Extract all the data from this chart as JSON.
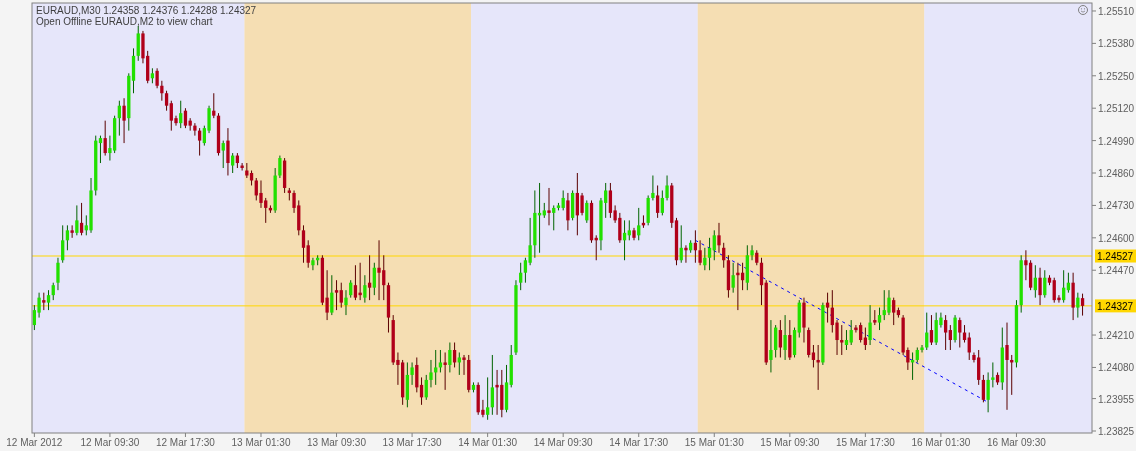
{
  "chart_data": {
    "type": "candlestick",
    "title": "EURAUD,M30  1.24358 1.24376 1.24288 1.24327",
    "annotations": [
      "Open Offline EURAUD,M2 to view chart"
    ],
    "x": [
      "2012-03-12T01:30",
      "2012-03-12T02:00",
      "2012-03-12T02:30",
      "2012-03-12T03:00",
      "2012-03-12T03:30",
      "2012-03-12T04:00",
      "2012-03-12T04:30",
      "2012-03-12T05:00",
      "2012-03-12T05:30",
      "2012-03-12T06:00",
      "2012-03-12T06:30",
      "2012-03-12T07:00",
      "2012-03-12T07:30",
      "2012-03-12T08:00",
      "2012-03-12T08:30",
      "2012-03-12T09:00",
      "2012-03-12T09:30",
      "2012-03-12T10:00",
      "2012-03-12T10:30",
      "2012-03-12T11:00",
      "2012-03-12T11:30",
      "2012-03-12T12:00",
      "2012-03-12T12:30",
      "2012-03-12T13:00",
      "2012-03-12T13:30",
      "2012-03-12T14:00",
      "2012-03-12T14:30",
      "2012-03-12T15:00",
      "2012-03-12T15:30",
      "2012-03-12T16:00",
      "2012-03-12T16:30",
      "2012-03-12T17:00",
      "2012-03-12T17:30",
      "2012-03-12T18:00",
      "2012-03-12T18:30",
      "2012-03-12T19:00",
      "2012-03-12T19:30",
      "2012-03-12T20:00",
      "2012-03-12T20:30",
      "2012-03-12T21:00",
      "2012-03-12T21:30",
      "2012-03-12T22:00",
      "2012-03-12T22:30",
      "2012-03-12T23:00",
      "2012-03-12T23:30",
      "2012-03-13T00:00",
      "2012-03-13T00:30",
      "2012-03-13T01:00",
      "2012-03-13T01:30",
      "2012-03-13T02:00",
      "2012-03-13T02:30",
      "2012-03-13T03:00",
      "2012-03-13T03:30",
      "2012-03-13T04:00",
      "2012-03-13T04:30",
      "2012-03-13T05:00",
      "2012-03-13T05:30",
      "2012-03-13T06:00",
      "2012-03-13T06:30",
      "2012-03-13T07:00",
      "2012-03-13T07:30",
      "2012-03-13T08:00",
      "2012-03-13T08:30",
      "2012-03-13T09:00",
      "2012-03-13T09:30",
      "2012-03-13T10:00",
      "2012-03-13T10:30",
      "2012-03-13T11:00",
      "2012-03-13T11:30",
      "2012-03-13T12:00",
      "2012-03-13T12:30",
      "2012-03-13T13:00",
      "2012-03-13T13:30",
      "2012-03-13T14:00",
      "2012-03-13T14:30",
      "2012-03-13T15:00",
      "2012-03-13T15:30",
      "2012-03-13T16:00",
      "2012-03-13T16:30",
      "2012-03-13T17:00",
      "2012-03-13T17:30",
      "2012-03-13T18:00",
      "2012-03-13T18:30",
      "2012-03-13T19:00",
      "2012-03-13T19:30",
      "2012-03-13T20:00",
      "2012-03-13T20:30",
      "2012-03-13T21:00",
      "2012-03-13T21:30",
      "2012-03-13T22:00",
      "2012-03-13T22:30",
      "2012-03-13T23:00",
      "2012-03-13T23:30",
      "2012-03-14T00:00",
      "2012-03-14T00:30",
      "2012-03-14T01:00",
      "2012-03-14T01:30",
      "2012-03-14T02:00",
      "2012-03-14T02:30",
      "2012-03-14T03:00",
      "2012-03-14T03:30",
      "2012-03-14T04:00",
      "2012-03-14T04:30",
      "2012-03-14T05:00",
      "2012-03-14T05:30",
      "2012-03-14T06:00",
      "2012-03-14T06:30",
      "2012-03-14T07:00",
      "2012-03-14T07:30",
      "2012-03-14T08:00",
      "2012-03-14T08:30",
      "2012-03-14T09:00",
      "2012-03-14T09:30",
      "2012-03-14T10:00",
      "2012-03-14T10:30",
      "2012-03-14T11:00",
      "2012-03-14T11:30",
      "2012-03-14T12:00",
      "2012-03-14T12:30",
      "2012-03-14T13:00",
      "2012-03-14T13:30",
      "2012-03-14T14:00",
      "2012-03-14T14:30",
      "2012-03-14T15:00",
      "2012-03-14T15:30",
      "2012-03-14T16:00",
      "2012-03-14T16:30",
      "2012-03-14T17:00",
      "2012-03-14T17:30",
      "2012-03-14T18:00",
      "2012-03-14T18:30",
      "2012-03-14T19:00",
      "2012-03-14T19:30",
      "2012-03-14T20:00",
      "2012-03-14T20:30",
      "2012-03-14T21:00",
      "2012-03-14T21:30",
      "2012-03-14T22:00",
      "2012-03-14T22:30",
      "2012-03-14T23:00",
      "2012-03-14T23:30",
      "2012-03-15T00:00",
      "2012-03-15T00:30",
      "2012-03-15T01:00",
      "2012-03-15T01:30",
      "2012-03-15T02:00",
      "2012-03-15T02:30",
      "2012-03-15T03:00",
      "2012-03-15T03:30",
      "2012-03-15T04:00",
      "2012-03-15T04:30",
      "2012-03-15T05:00",
      "2012-03-15T05:30",
      "2012-03-15T06:00",
      "2012-03-15T06:30",
      "2012-03-15T07:00",
      "2012-03-15T07:30",
      "2012-03-15T08:00",
      "2012-03-15T08:30",
      "2012-03-15T09:00",
      "2012-03-15T09:30",
      "2012-03-15T10:00",
      "2012-03-15T10:30",
      "2012-03-15T11:00",
      "2012-03-15T11:30",
      "2012-03-15T12:00",
      "2012-03-15T12:30",
      "2012-03-15T13:00",
      "2012-03-15T13:30",
      "2012-03-15T14:00",
      "2012-03-15T14:30",
      "2012-03-15T15:00",
      "2012-03-15T15:30",
      "2012-03-15T16:00",
      "2012-03-15T16:30",
      "2012-03-15T17:00",
      "2012-03-15T17:30",
      "2012-03-15T18:00",
      "2012-03-15T18:30",
      "2012-03-15T19:00",
      "2012-03-15T19:30",
      "2012-03-15T20:00",
      "2012-03-15T20:30",
      "2012-03-15T21:00",
      "2012-03-15T21:30",
      "2012-03-15T22:00",
      "2012-03-15T22:30",
      "2012-03-15T23:00",
      "2012-03-15T23:30",
      "2012-03-16T00:00",
      "2012-03-16T00:30",
      "2012-03-16T01:00",
      "2012-03-16T01:30",
      "2012-03-16T02:00",
      "2012-03-16T02:30",
      "2012-03-16T03:00",
      "2012-03-16T03:30",
      "2012-03-16T04:00",
      "2012-03-16T04:30",
      "2012-03-16T05:00",
      "2012-03-16T05:30",
      "2012-03-16T06:00",
      "2012-03-16T06:30",
      "2012-03-16T07:00",
      "2012-03-16T07:30",
      "2012-03-16T08:00",
      "2012-03-16T08:30",
      "2012-03-16T09:00",
      "2012-03-16T09:30",
      "2012-03-16T10:00",
      "2012-03-16T10:30",
      "2012-03-16T11:00",
      "2012-03-16T11:30",
      "2012-03-16T12:00",
      "2012-03-16T12:30",
      "2012-03-16T13:00",
      "2012-03-16T13:30",
      "2012-03-16T14:00",
      "2012-03-16T14:30",
      "2012-03-16T15:00",
      "2012-03-16T15:30",
      "2012-03-16T16:00",
      "2012-03-16T16:30"
    ],
    "ohlc": [
      [
        1.2425,
        1.2433,
        1.2423,
        1.2431
      ],
      [
        1.243,
        1.2438,
        1.2428,
        1.2436
      ],
      [
        1.2435,
        1.2438,
        1.2431,
        1.2434
      ],
      [
        1.2434,
        1.2439,
        1.2431,
        1.2437
      ],
      [
        1.2437,
        1.2442,
        1.2435,
        1.2441
      ],
      [
        1.2442,
        1.2452,
        1.2439,
        1.245
      ],
      [
        1.2451,
        1.2465,
        1.245,
        1.2459
      ],
      [
        1.2459,
        1.2465,
        1.2455,
        1.2463
      ],
      [
        1.2463,
        1.2465,
        1.246,
        1.2462
      ],
      [
        1.2462,
        1.2473,
        1.2461,
        1.2467
      ],
      [
        1.2466,
        1.2474,
        1.2461,
        1.2462
      ],
      [
        1.2463,
        1.2469,
        1.2461,
        1.2465
      ],
      [
        1.2463,
        1.2484,
        1.2462,
        1.2479
      ],
      [
        1.2479,
        1.2501,
        1.2477,
        1.2499
      ],
      [
        1.2498,
        1.2501,
        1.249,
        1.25
      ],
      [
        1.25,
        1.2507,
        1.2493,
        1.2494
      ],
      [
        1.2494,
        1.2501,
        1.2491,
        1.2496
      ],
      [
        1.2495,
        1.2509,
        1.2494,
        1.2508
      ],
      [
        1.2508,
        1.2515,
        1.2501,
        1.2513
      ],
      [
        1.2513,
        1.2516,
        1.2498,
        1.2507
      ],
      [
        1.2508,
        1.2526,
        1.2503,
        1.2525
      ],
      [
        1.2523,
        1.2536,
        1.2518,
        1.2533
      ],
      [
        1.2533,
        1.2545,
        1.2531,
        1.2542
      ],
      [
        1.2542,
        1.2543,
        1.253,
        1.2532
      ],
      [
        1.2533,
        1.2535,
        1.2522,
        1.2523
      ],
      [
        1.2524,
        1.2528,
        1.2522,
        1.2526
      ],
      [
        1.2527,
        1.2528,
        1.252,
        1.2521
      ],
      [
        1.2521,
        1.2523,
        1.2515,
        1.2518
      ],
      [
        1.2518,
        1.2519,
        1.2511,
        1.2513
      ],
      [
        1.2514,
        1.2515,
        1.2503,
        1.2507
      ],
      [
        1.2508,
        1.2509,
        1.2505,
        1.2506
      ],
      [
        1.2506,
        1.2515,
        1.2504,
        1.251
      ],
      [
        1.2511,
        1.2512,
        1.2504,
        1.2505
      ],
      [
        1.2507,
        1.2508,
        1.2503,
        1.2505
      ],
      [
        1.2505,
        1.2506,
        1.2501,
        1.2503
      ],
      [
        1.2503,
        1.2504,
        1.2493,
        1.2499
      ],
      [
        1.2498,
        1.2505,
        1.2497,
        1.2504
      ],
      [
        1.2503,
        1.2513,
        1.2502,
        1.2512
      ],
      [
        1.2511,
        1.2518,
        1.2508,
        1.2509
      ],
      [
        1.2509,
        1.251,
        1.2493,
        1.2494
      ],
      [
        1.2495,
        1.2499,
        1.2488,
        1.2498
      ],
      [
        1.2499,
        1.2504,
        1.2485,
        1.249
      ],
      [
        1.2489,
        1.2494,
        1.2486,
        1.2493
      ],
      [
        1.2493,
        1.2494,
        1.2488,
        1.249
      ],
      [
        1.2489,
        1.249,
        1.2487,
        1.2488
      ],
      [
        1.2487,
        1.249,
        1.2484,
        1.2485
      ],
      [
        1.2486,
        1.2487,
        1.2481,
        1.2483
      ],
      [
        1.2483,
        1.2484,
        1.2475,
        1.2477
      ],
      [
        1.2478,
        1.2483,
        1.2472,
        1.2474
      ],
      [
        1.2475,
        1.2476,
        1.2466,
        1.2472
      ],
      [
        1.2472,
        1.2473,
        1.247,
        1.2471
      ],
      [
        1.2471,
        1.2488,
        1.247,
        1.2485
      ],
      [
        1.2485,
        1.2493,
        1.2484,
        1.2492
      ],
      [
        1.2491,
        1.2492,
        1.2478,
        1.248
      ],
      [
        1.2479,
        1.248,
        1.2475,
        1.2478
      ],
      [
        1.2478,
        1.2479,
        1.247,
        1.2472
      ],
      [
        1.2473,
        1.2475,
        1.2461,
        1.2463
      ],
      [
        1.2463,
        1.2465,
        1.245,
        1.2456
      ],
      [
        1.2457,
        1.2459,
        1.2448,
        1.245
      ],
      [
        1.2449,
        1.2452,
        1.2447,
        1.2451
      ],
      [
        1.2451,
        1.2453,
        1.2449,
        1.2452
      ],
      [
        1.2452,
        1.2453,
        1.2433,
        1.2434
      ],
      [
        1.2436,
        1.2447,
        1.2427,
        1.243
      ],
      [
        1.243,
        1.2445,
        1.2429,
        1.2438
      ],
      [
        1.2439,
        1.2443,
        1.2431,
        1.2438
      ],
      [
        1.2439,
        1.2442,
        1.2432,
        1.2434
      ],
      [
        1.2433,
        1.2439,
        1.2429,
        1.2436
      ],
      [
        1.2437,
        1.2443,
        1.2436,
        1.2442
      ],
      [
        1.2441,
        1.2449,
        1.2435,
        1.2436
      ],
      [
        1.2438,
        1.245,
        1.2435,
        1.2437
      ],
      [
        1.2436,
        1.2445,
        1.2434,
        1.2441
      ],
      [
        1.2442,
        1.2453,
        1.2435,
        1.244
      ],
      [
        1.244,
        1.245,
        1.2437,
        1.2448
      ],
      [
        1.2448,
        1.2459,
        1.2435,
        1.2446
      ],
      [
        1.2447,
        1.2453,
        1.2435,
        1.2441
      ],
      [
        1.2441,
        1.2442,
        1.2422,
        1.2428
      ],
      [
        1.2427,
        1.2429,
        1.2409,
        1.241
      ],
      [
        1.2411,
        1.2414,
        1.2401,
        1.2409
      ],
      [
        1.241,
        1.2411,
        1.2393,
        1.2396
      ],
      [
        1.2395,
        1.241,
        1.2392,
        1.2405
      ],
      [
        1.2405,
        1.241,
        1.2401,
        1.2408
      ],
      [
        1.2409,
        1.2412,
        1.2398,
        1.24
      ],
      [
        1.2401,
        1.2404,
        1.2393,
        1.2396
      ],
      [
        1.2396,
        1.2405,
        1.2395,
        1.2403
      ],
      [
        1.2403,
        1.2411,
        1.24,
        1.2406
      ],
      [
        1.2406,
        1.2415,
        1.2401,
        1.2408
      ],
      [
        1.2408,
        1.2415,
        1.2406,
        1.241
      ],
      [
        1.241,
        1.2414,
        1.2399,
        1.2409
      ],
      [
        1.2409,
        1.2418,
        1.2406,
        1.2415
      ],
      [
        1.2415,
        1.2418,
        1.2408,
        1.241
      ],
      [
        1.241,
        1.2414,
        1.2405,
        1.2412
      ],
      [
        1.2412,
        1.2413,
        1.2405,
        1.2411
      ],
      [
        1.2411,
        1.2413,
        1.2398,
        1.2399
      ],
      [
        1.2399,
        1.2402,
        1.2398,
        1.2401
      ],
      [
        1.2401,
        1.2402,
        1.2389,
        1.239
      ],
      [
        1.2391,
        1.2395,
        1.2388,
        1.2389
      ],
      [
        1.2389,
        1.2404,
        1.2387,
        1.2392
      ],
      [
        1.2392,
        1.2413,
        1.2389,
        1.24
      ],
      [
        1.2401,
        1.2407,
        1.2389,
        1.24
      ],
      [
        1.2401,
        1.2407,
        1.2388,
        1.2391
      ],
      [
        1.2391,
        1.2409,
        1.239,
        1.2402
      ],
      [
        1.2401,
        1.2417,
        1.24,
        1.2413
      ],
      [
        1.2414,
        1.2443,
        1.2413,
        1.2441
      ],
      [
        1.2442,
        1.245,
        1.2439,
        1.2446
      ],
      [
        1.2446,
        1.2452,
        1.2442,
        1.2451
      ],
      [
        1.245,
        1.2468,
        1.2449,
        1.2457
      ],
      [
        1.2457,
        1.2479,
        1.2452,
        1.247
      ],
      [
        1.2469,
        1.2482,
        1.2454,
        1.247
      ],
      [
        1.2469,
        1.2474,
        1.2468,
        1.2471
      ],
      [
        1.2471,
        1.248,
        1.2465,
        1.247
      ],
      [
        1.247,
        1.2473,
        1.2463,
        1.2472
      ],
      [
        1.2472,
        1.2474,
        1.2471,
        1.2473
      ],
      [
        1.2472,
        1.2479,
        1.2471,
        1.2476
      ],
      [
        1.2475,
        1.2478,
        1.2463,
        1.2467
      ],
      [
        1.2468,
        1.2479,
        1.2467,
        1.2478
      ],
      [
        1.2478,
        1.2486,
        1.2461,
        1.2469
      ],
      [
        1.2477,
        1.2478,
        1.2469,
        1.247
      ],
      [
        1.2467,
        1.2475,
        1.2466,
        1.2474
      ],
      [
        1.2474,
        1.2475,
        1.2458,
        1.2459
      ],
      [
        1.246,
        1.2461,
        1.2451,
        1.2459
      ],
      [
        1.2459,
        1.2476,
        1.2455,
        1.2475
      ],
      [
        1.2474,
        1.2482,
        1.2468,
        1.2479
      ],
      [
        1.2479,
        1.2482,
        1.2468,
        1.247
      ],
      [
        1.2471,
        1.2473,
        1.2466,
        1.2467
      ],
      [
        1.2468,
        1.247,
        1.2458,
        1.2459
      ],
      [
        1.2459,
        1.2467,
        1.2451,
        1.2462
      ],
      [
        1.2461,
        1.2467,
        1.2459,
        1.2463
      ],
      [
        1.2463,
        1.2464,
        1.2459,
        1.246
      ],
      [
        1.2461,
        1.2472,
        1.2459,
        1.2465
      ],
      [
        1.2466,
        1.2469,
        1.2464,
        1.2465
      ],
      [
        1.2466,
        1.2477,
        1.2465,
        1.2476
      ],
      [
        1.2476,
        1.2485,
        1.2475,
        1.2478
      ],
      [
        1.2477,
        1.2481,
        1.2468,
        1.247
      ],
      [
        1.247,
        1.2479,
        1.2469,
        1.2476
      ],
      [
        1.2476,
        1.2485,
        1.2475,
        1.2481
      ],
      [
        1.2481,
        1.2482,
        1.2464,
        1.2466
      ],
      [
        1.2467,
        1.2468,
        1.2449,
        1.2451
      ],
      [
        1.2451,
        1.2465,
        1.245,
        1.2456
      ],
      [
        1.2456,
        1.2457,
        1.245,
        1.2455
      ],
      [
        1.2455,
        1.2459,
        1.2454,
        1.2458
      ],
      [
        1.2458,
        1.2463,
        1.245,
        1.2455
      ],
      [
        1.2455,
        1.2459,
        1.2449,
        1.245
      ],
      [
        1.2449,
        1.2456,
        1.2447,
        1.2452
      ],
      [
        1.2452,
        1.246,
        1.2447,
        1.2456
      ],
      [
        1.2455,
        1.2463,
        1.2451,
        1.2461
      ],
      [
        1.2461,
        1.2466,
        1.2454,
        1.2457
      ],
      [
        1.2456,
        1.2458,
        1.2448,
        1.2451
      ],
      [
        1.2451,
        1.2453,
        1.2436,
        1.2439
      ],
      [
        1.244,
        1.245,
        1.2438,
        1.2445
      ],
      [
        1.2446,
        1.245,
        1.2431,
        1.2445
      ],
      [
        1.2446,
        1.245,
        1.2439,
        1.2443
      ],
      [
        1.2442,
        1.2457,
        1.2439,
        1.2453
      ],
      [
        1.2453,
        1.2457,
        1.2451,
        1.2455
      ],
      [
        1.2454,
        1.2455,
        1.2449,
        1.245
      ],
      [
        1.245,
        1.2452,
        1.2433,
        1.2441
      ],
      [
        1.2442,
        1.2443,
        1.2409,
        1.241
      ],
      [
        1.2411,
        1.2427,
        1.2406,
        1.2415
      ],
      [
        1.2415,
        1.2425,
        1.2412,
        1.2424
      ],
      [
        1.2423,
        1.2427,
        1.2412,
        1.2416
      ],
      [
        1.2415,
        1.2429,
        1.2411,
        1.2421
      ],
      [
        1.2421,
        1.2427,
        1.2411,
        1.2412
      ],
      [
        1.2413,
        1.2424,
        1.2412,
        1.2423
      ],
      [
        1.2422,
        1.2435,
        1.242,
        1.2434
      ],
      [
        1.2434,
        1.2436,
        1.2418,
        1.2424
      ],
      [
        1.2423,
        1.2424,
        1.2412,
        1.2413
      ],
      [
        1.2414,
        1.2417,
        1.2408,
        1.2411
      ],
      [
        1.2411,
        1.2417,
        1.2399,
        1.241
      ],
      [
        1.241,
        1.2434,
        1.2409,
        1.2433
      ],
      [
        1.2434,
        1.2438,
        1.2426,
        1.2432
      ],
      [
        1.2432,
        1.2439,
        1.2422,
        1.2425
      ],
      [
        1.2426,
        1.2427,
        1.2413,
        1.2419
      ],
      [
        1.2419,
        1.2425,
        1.2413,
        1.2418
      ],
      [
        1.2417,
        1.2423,
        1.2415,
        1.2419
      ],
      [
        1.2418,
        1.2427,
        1.2417,
        1.2423
      ],
      [
        1.2424,
        1.2425,
        1.2422,
        1.2423
      ],
      [
        1.2425,
        1.2426,
        1.2418,
        1.2419
      ],
      [
        1.242,
        1.2424,
        1.2415,
        1.2417
      ],
      [
        1.2419,
        1.2433,
        1.2417,
        1.2426
      ],
      [
        1.2427,
        1.2431,
        1.2425,
        1.2426
      ],
      [
        1.2426,
        1.2432,
        1.2423,
        1.2429
      ],
      [
        1.2429,
        1.2439,
        1.2427,
        1.2431
      ],
      [
        1.243,
        1.2439,
        1.2429,
        1.2436
      ],
      [
        1.2435,
        1.2436,
        1.2425,
        1.243
      ],
      [
        1.2431,
        1.2432,
        1.2428,
        1.2429
      ],
      [
        1.2428,
        1.2429,
        1.2413,
        1.2414
      ],
      [
        1.2415,
        1.2416,
        1.2407,
        1.241
      ],
      [
        1.241,
        1.2414,
        1.2403,
        1.2411
      ],
      [
        1.2411,
        1.2416,
        1.241,
        1.2415
      ],
      [
        1.2415,
        1.2417,
        1.2414,
        1.2416
      ],
      [
        1.2416,
        1.243,
        1.2415,
        1.2422
      ],
      [
        1.2423,
        1.2429,
        1.2417,
        1.2418
      ],
      [
        1.2418,
        1.243,
        1.2417,
        1.2427
      ],
      [
        1.2425,
        1.243,
        1.2424,
        1.2428
      ],
      [
        1.2427,
        1.2429,
        1.2415,
        1.2422
      ],
      [
        1.2423,
        1.2425,
        1.2415,
        1.2419
      ],
      [
        1.2419,
        1.2429,
        1.2418,
        1.2428
      ],
      [
        1.2427,
        1.2428,
        1.2416,
        1.2422
      ],
      [
        1.2422,
        1.2425,
        1.2418,
        1.2419
      ],
      [
        1.242,
        1.2422,
        1.2411,
        1.2414
      ],
      [
        1.2413,
        1.2414,
        1.241,
        1.2411
      ],
      [
        1.2412,
        1.2415,
        1.2401,
        1.2403
      ],
      [
        1.2403,
        1.2405,
        1.2394,
        1.2395
      ],
      [
        1.2395,
        1.2406,
        1.239,
        1.2403
      ],
      [
        1.2403,
        1.241,
        1.24,
        1.2404
      ],
      [
        1.2405,
        1.2406,
        1.2401,
        1.2402
      ],
      [
        1.2402,
        1.2424,
        1.2399,
        1.2416
      ],
      [
        1.2417,
        1.2426,
        1.2391,
        1.2411
      ],
      [
        1.2411,
        1.2413,
        1.2397,
        1.241
      ],
      [
        1.241,
        1.2435,
        1.2408,
        1.2433
      ],
      [
        1.2433,
        1.2453,
        1.243,
        1.2451
      ],
      [
        1.2451,
        1.2455,
        1.2443,
        1.2449
      ],
      [
        1.245,
        1.2451,
        1.2439,
        1.244
      ],
      [
        1.2439,
        1.2449,
        1.2436,
        1.2444
      ],
      [
        1.2444,
        1.2448,
        1.2433,
        1.2437
      ],
      [
        1.2437,
        1.2447,
        1.2436,
        1.2444
      ],
      [
        1.2444,
        1.2445,
        1.2441,
        1.2442
      ],
      [
        1.2443,
        1.2444,
        1.2434,
        1.2435
      ],
      [
        1.2436,
        1.2437,
        1.2434,
        1.2435
      ],
      [
        1.2435,
        1.2447,
        1.2434,
        1.244
      ],
      [
        1.2439,
        1.2446,
        1.2438,
        1.2442
      ],
      [
        1.2442,
        1.2446,
        1.2427,
        1.2432
      ],
      [
        1.2432,
        1.2438,
        1.2428,
        1.2436
      ],
      [
        1.24358,
        1.24376,
        1.24288,
        1.24327
      ]
    ],
    "series": [
      {
        "type": "line",
        "x": [
          "2012-03-14T23:30",
          "2012-03-16T06:30"
        ],
        "values": [
          1.2459,
          1.2394
        ],
        "color": "#0000ff",
        "line_style": "dashed"
      }
    ],
    "bands": [
      {
        "axis": "x",
        "from": "2012-03-12T01:30",
        "to": "2012-03-12T23:30",
        "color": "#e6e6fa"
      },
      {
        "axis": "x",
        "from": "2012-03-13T00:00",
        "to": "2012-03-13T23:30",
        "color": "#f5deb3"
      },
      {
        "axis": "x",
        "from": "2012-03-14T00:00",
        "to": "2012-03-14T23:30",
        "color": "#e6e6fa"
      },
      {
        "axis": "x",
        "from": "2012-03-15T00:00",
        "to": "2012-03-15T23:30",
        "color": "#f5deb3"
      },
      {
        "axis": "x",
        "from": "2012-03-16T00:00",
        "to": "2012-03-16T23:30",
        "color": "#e6e6fa"
      }
    ],
    "ref_lines": [
      {
        "axis": "y",
        "value": 1.24527,
        "label": "1.24527",
        "color": "#ffd700"
      },
      {
        "axis": "y",
        "value": 1.24327,
        "label": "1.24327",
        "color": "#ffd700"
      }
    ],
    "xlim": [
      "2012-03-12T01:15",
      "2012-03-16T17:30"
    ],
    "xticks": [
      {
        "value": "2012-03-12T01:30",
        "label": "12 Mar 2012"
      },
      {
        "value": "2012-03-12T09:30",
        "label": "12 Mar 09:30"
      },
      {
        "value": "2012-03-12T17:30",
        "label": "12 Mar 17:30"
      },
      {
        "value": "2012-03-13T01:30",
        "label": "13 Mar 01:30"
      },
      {
        "value": "2012-03-13T09:30",
        "label": "13 Mar 09:30"
      },
      {
        "value": "2012-03-13T17:30",
        "label": "13 Mar 17:30"
      },
      {
        "value": "2012-03-14T01:30",
        "label": "14 Mar 01:30"
      },
      {
        "value": "2012-03-14T09:30",
        "label": "14 Mar 09:30"
      },
      {
        "value": "2012-03-14T17:30",
        "label": "14 Mar 17:30"
      },
      {
        "value": "2012-03-15T01:30",
        "label": "15 Mar 01:30"
      },
      {
        "value": "2012-03-15T09:30",
        "label": "15 Mar 09:30"
      },
      {
        "value": "2012-03-15T17:30",
        "label": "15 Mar 17:30"
      },
      {
        "value": "2012-03-16T01:30",
        "label": "16 Mar 01:30"
      },
      {
        "value": "2012-03-16T09:30",
        "label": "16 Mar 09:30"
      }
    ],
    "ylim": [
      1.23817,
      1.25542
    ],
    "yticks": [
      {
        "value": 1.2551,
        "label": "1.25510"
      },
      {
        "value": 1.2538,
        "label": "1.25380"
      },
      {
        "value": 1.2525,
        "label": "1.25250"
      },
      {
        "value": 1.2512,
        "label": "1.25120"
      },
      {
        "value": 1.2499,
        "label": "1.24990"
      },
      {
        "value": 1.2486,
        "label": "1.24860"
      },
      {
        "value": 1.2473,
        "label": "1.24730"
      },
      {
        "value": 1.246,
        "label": "1.24600"
      },
      {
        "value": 1.2447,
        "label": "1.24470"
      },
      {
        "value": 1.2421,
        "label": "1.24210"
      },
      {
        "value": 1.2408,
        "label": "1.24080"
      },
      1.23955,
      1.23825
    ]
  }
}
